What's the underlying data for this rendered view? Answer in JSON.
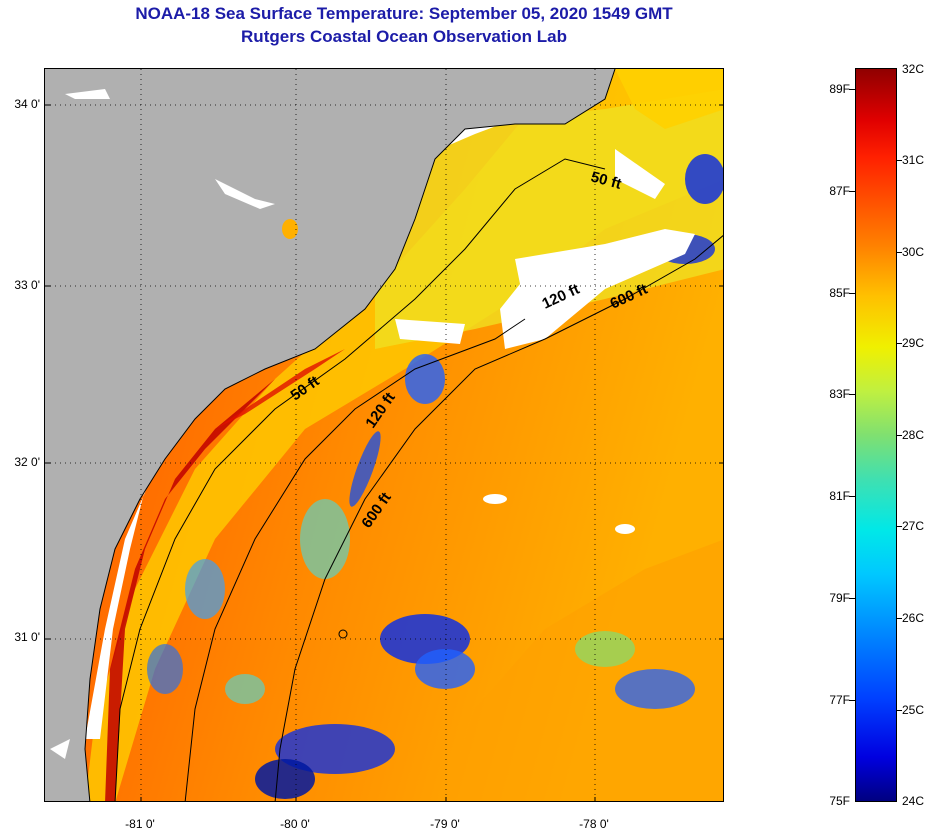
{
  "title": {
    "line1": "NOAA-18 Sea Surface Temperature:  September 05, 2020 1549 GMT",
    "line2": "Rutgers Coastal Ocean Observation Lab"
  },
  "map": {
    "latitude_labels": [
      "34 0'",
      "33 0'",
      "32 0'",
      "31 0'"
    ],
    "longitude_labels": [
      "-81 0'",
      "-80 0'",
      "-79 0'",
      "-78 0'"
    ],
    "depth_contour_labels": [
      "50 ft",
      "120 ft",
      "600 ft",
      "50 ft",
      "120 ft",
      "600 ft"
    ],
    "colors": {
      "land": "#b0b0b0",
      "cloud": "#ffffff",
      "warm": "#ff6a00",
      "hot": "#e01000",
      "mid": "#ffd400",
      "cool": "#40c8d0",
      "cold": "#1030e0"
    }
  },
  "colorbar": {
    "fahrenheit_labels": [
      "89F",
      "87F",
      "85F",
      "83F",
      "81F",
      "79F",
      "77F",
      "75F"
    ],
    "celsius_labels": [
      "32C",
      "31C",
      "30C",
      "29C",
      "28C",
      "27C",
      "26C",
      "25C",
      "24C"
    ]
  }
}
